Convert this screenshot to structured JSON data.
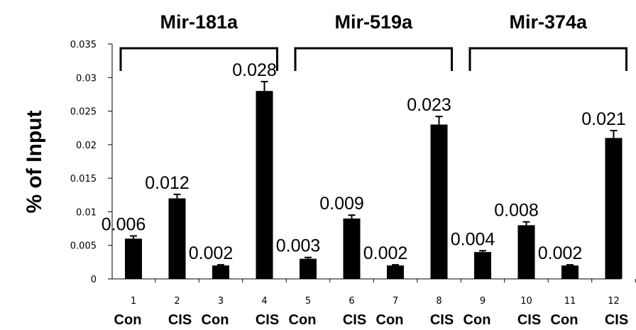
{
  "chart_data": {
    "type": "bar",
    "ylabel": "% of Input",
    "ylim": [
      0,
      0.035
    ],
    "yticks": [
      "0",
      "0.005",
      "0.01",
      "0.015",
      "0.02",
      "0.025",
      "0.03",
      "0.035"
    ],
    "ytick_values": [
      0,
      0.005,
      0.01,
      0.015,
      0.02,
      0.025,
      0.03,
      0.035
    ],
    "grid": false,
    "categories": [
      "1",
      "2",
      "3",
      "4",
      "5",
      "6",
      "7",
      "8",
      "9",
      "10",
      "11",
      "12"
    ],
    "conditions": [
      "Con",
      "CIS",
      "Con",
      "CIS",
      "Con",
      "CIS",
      "Con",
      "CIS",
      "Con",
      "CIS",
      "Con",
      "CIS"
    ],
    "values": [
      0.006,
      0.012,
      0.002,
      0.028,
      0.003,
      0.009,
      0.002,
      0.023,
      0.004,
      0.008,
      0.002,
      0.021
    ],
    "value_labels": [
      "0.006",
      "0.012",
      "0.002",
      "0.028",
      "0.003",
      "0.009",
      "0.002",
      "0.023",
      "0.004",
      "0.008",
      "0.002",
      "0.021"
    ],
    "errors": [
      0.0004,
      0.0006,
      0.0001,
      0.0014,
      0.0002,
      0.0005,
      0.0001,
      0.0012,
      0.0002,
      0.0005,
      0.0001,
      0.0011
    ],
    "groups": [
      {
        "name": "Mir-181a",
        "bars": [
          1,
          4
        ]
      },
      {
        "name": "Mir-519a",
        "bars": [
          5,
          8
        ]
      },
      {
        "name": "Mir-374a",
        "bars": [
          9,
          12
        ]
      }
    ],
    "colors": {
      "bar": "#000000",
      "axis": "#000000"
    }
  }
}
